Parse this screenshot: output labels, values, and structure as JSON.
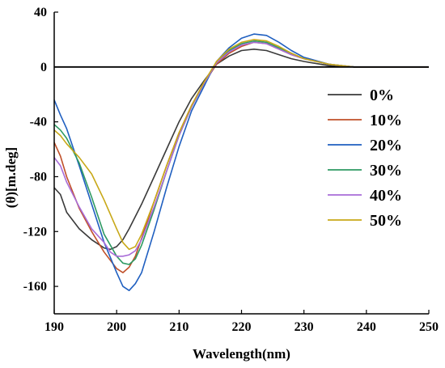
{
  "chart_data": {
    "type": "line",
    "xlabel": "Wavelength(nm)",
    "ylabel": "(θ)[m.deg]",
    "xlim": [
      190,
      250
    ],
    "ylim": [
      -180,
      40
    ],
    "xticks": [
      190,
      200,
      210,
      220,
      230,
      240,
      250
    ],
    "yticks": [
      40,
      0,
      -40,
      -80,
      -120,
      -160
    ],
    "legend_position": "right",
    "zero_line": true,
    "series": [
      {
        "name": "0%",
        "color": "#3a3a3a",
        "points": [
          [
            190,
            -88
          ],
          [
            191,
            -93
          ],
          [
            192,
            -106
          ],
          [
            194,
            -118
          ],
          [
            196,
            -126
          ],
          [
            198,
            -132
          ],
          [
            199,
            -133
          ],
          [
            200,
            -131
          ],
          [
            201,
            -126
          ],
          [
            202,
            -118
          ],
          [
            204,
            -100
          ],
          [
            206,
            -80
          ],
          [
            208,
            -60
          ],
          [
            210,
            -40
          ],
          [
            212,
            -23
          ],
          [
            214,
            -10
          ],
          [
            216,
            2
          ],
          [
            218,
            8
          ],
          [
            220,
            12
          ],
          [
            222,
            13
          ],
          [
            224,
            12
          ],
          [
            226,
            9
          ],
          [
            228,
            6
          ],
          [
            230,
            4
          ],
          [
            234,
            1
          ],
          [
            238,
            0
          ],
          [
            240,
            0
          ],
          [
            250,
            0
          ]
        ]
      },
      {
        "name": "10%",
        "color": "#c0502a",
        "points": [
          [
            190,
            -55
          ],
          [
            191,
            -65
          ],
          [
            192,
            -80
          ],
          [
            194,
            -103
          ],
          [
            196,
            -120
          ],
          [
            198,
            -135
          ],
          [
            200,
            -147
          ],
          [
            201,
            -150
          ],
          [
            202,
            -146
          ],
          [
            203,
            -138
          ],
          [
            204,
            -125
          ],
          [
            206,
            -98
          ],
          [
            208,
            -72
          ],
          [
            210,
            -48
          ],
          [
            212,
            -28
          ],
          [
            214,
            -12
          ],
          [
            216,
            2
          ],
          [
            218,
            10
          ],
          [
            220,
            15
          ],
          [
            222,
            18
          ],
          [
            224,
            17
          ],
          [
            226,
            13
          ],
          [
            228,
            9
          ],
          [
            230,
            6
          ],
          [
            234,
            2
          ],
          [
            238,
            0
          ],
          [
            240,
            0
          ],
          [
            250,
            0
          ]
        ]
      },
      {
        "name": "20%",
        "color": "#1f5fc0",
        "points": [
          [
            190,
            -24
          ],
          [
            191,
            -35
          ],
          [
            192,
            -45
          ],
          [
            194,
            -72
          ],
          [
            196,
            -100
          ],
          [
            198,
            -128
          ],
          [
            200,
            -150
          ],
          [
            201,
            -160
          ],
          [
            202,
            -163
          ],
          [
            203,
            -158
          ],
          [
            204,
            -150
          ],
          [
            206,
            -120
          ],
          [
            208,
            -88
          ],
          [
            210,
            -58
          ],
          [
            212,
            -32
          ],
          [
            214,
            -14
          ],
          [
            216,
            4
          ],
          [
            218,
            14
          ],
          [
            220,
            21
          ],
          [
            222,
            24
          ],
          [
            224,
            23
          ],
          [
            226,
            18
          ],
          [
            228,
            12
          ],
          [
            230,
            7
          ],
          [
            234,
            2
          ],
          [
            238,
            0
          ],
          [
            240,
            0
          ],
          [
            250,
            0
          ]
        ]
      },
      {
        "name": "30%",
        "color": "#2e9a63",
        "points": [
          [
            190,
            -42
          ],
          [
            191,
            -46
          ],
          [
            192,
            -52
          ],
          [
            194,
            -70
          ],
          [
            196,
            -95
          ],
          [
            198,
            -122
          ],
          [
            200,
            -138
          ],
          [
            201,
            -143
          ],
          [
            202,
            -144
          ],
          [
            203,
            -140
          ],
          [
            204,
            -130
          ],
          [
            206,
            -104
          ],
          [
            208,
            -76
          ],
          [
            210,
            -50
          ],
          [
            212,
            -29
          ],
          [
            214,
            -12
          ],
          [
            216,
            3
          ],
          [
            218,
            12
          ],
          [
            220,
            17
          ],
          [
            222,
            19
          ],
          [
            224,
            18
          ],
          [
            226,
            14
          ],
          [
            228,
            10
          ],
          [
            230,
            6
          ],
          [
            234,
            2
          ],
          [
            238,
            0
          ],
          [
            240,
            0
          ],
          [
            250,
            0
          ]
        ]
      },
      {
        "name": "40%",
        "color": "#a86cd8",
        "points": [
          [
            190,
            -66
          ],
          [
            191,
            -72
          ],
          [
            192,
            -84
          ],
          [
            194,
            -102
          ],
          [
            196,
            -118
          ],
          [
            198,
            -128
          ],
          [
            199,
            -135
          ],
          [
            200,
            -138
          ],
          [
            201,
            -138
          ],
          [
            202,
            -137
          ],
          [
            203,
            -134
          ],
          [
            204,
            -126
          ],
          [
            206,
            -102
          ],
          [
            208,
            -76
          ],
          [
            210,
            -50
          ],
          [
            212,
            -29
          ],
          [
            214,
            -12
          ],
          [
            216,
            3
          ],
          [
            218,
            11
          ],
          [
            220,
            16
          ],
          [
            222,
            18
          ],
          [
            224,
            17
          ],
          [
            226,
            13
          ],
          [
            228,
            9
          ],
          [
            230,
            6
          ],
          [
            234,
            2
          ],
          [
            238,
            0
          ],
          [
            240,
            0
          ],
          [
            250,
            0
          ]
        ]
      },
      {
        "name": "50%",
        "color": "#c8a818",
        "points": [
          [
            190,
            -46
          ],
          [
            191,
            -50
          ],
          [
            192,
            -56
          ],
          [
            194,
            -66
          ],
          [
            196,
            -78
          ],
          [
            198,
            -97
          ],
          [
            200,
            -118
          ],
          [
            201,
            -128
          ],
          [
            202,
            -133
          ],
          [
            203,
            -131
          ],
          [
            204,
            -122
          ],
          [
            206,
            -98
          ],
          [
            208,
            -72
          ],
          [
            210,
            -48
          ],
          [
            212,
            -28
          ],
          [
            214,
            -11
          ],
          [
            216,
            4
          ],
          [
            218,
            13
          ],
          [
            220,
            18
          ],
          [
            222,
            20
          ],
          [
            224,
            19
          ],
          [
            226,
            15
          ],
          [
            228,
            10
          ],
          [
            230,
            6
          ],
          [
            234,
            2
          ],
          [
            238,
            0
          ],
          [
            240,
            0
          ],
          [
            250,
            0
          ]
        ]
      }
    ]
  }
}
